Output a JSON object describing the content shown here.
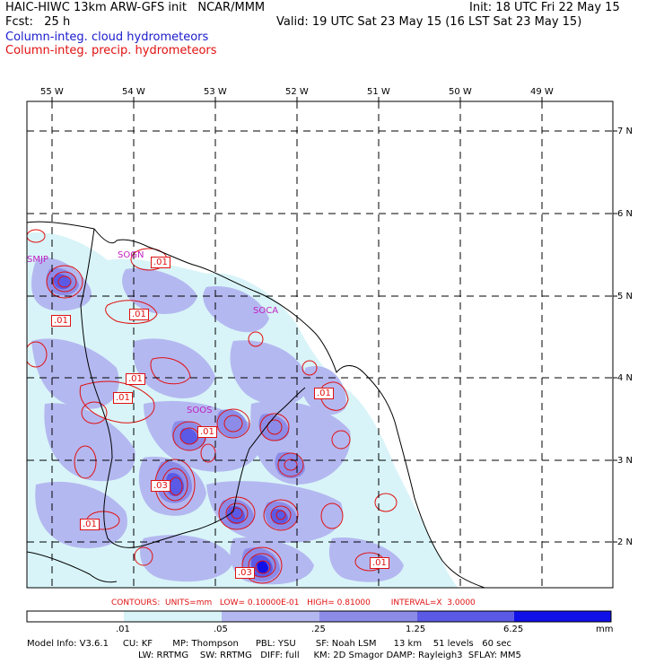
{
  "header": {
    "title": "HAIC-HIWC 13km ARW-GFS init   NCAR/MMM",
    "init": "Init: 18 UTC Fri 22 May 15",
    "fcst": "Fcst:   25 h",
    "valid": "Valid: 19 UTC Sat 23 May 15 (16 LST Sat 23 May 15)",
    "cloud_label": "Column-integ. cloud hydrometeors",
    "precip_label": "Column-integ. precip. hydrometeors"
  },
  "map": {
    "lon_labels": [
      "55 W",
      "54 W",
      "53 W",
      "52 W",
      "51 W",
      "50 W",
      "49 W"
    ],
    "lat_labels": [
      "7 N",
      "6 N",
      "5 N",
      "4 N",
      "3 N",
      "2 N"
    ],
    "stations": [
      "SMJP",
      "SOGN",
      "SOCA",
      "SOOS"
    ],
    "contour_labels": [
      ".01",
      ".01",
      ".01",
      ".01",
      ".01",
      ".01",
      ".03",
      ".01",
      ".01",
      ".03",
      ".01"
    ]
  },
  "contours_info": {
    "text": "CONTOURS:  UNITS=mm   LOW= 0.10000E-01   HIGH= 0.81000        INTERVAL=X  3.0000"
  },
  "colorbar": {
    "ticks": [
      ".01",
      ".05",
      ".25",
      "1.25",
      "6.25"
    ],
    "unit": "mm",
    "colors": [
      "#ffffff",
      "#d8f4f8",
      "#b4b8f0",
      "#8c8ce8",
      "#5a5ae6",
      "#2a2ae8",
      "#1010e8"
    ]
  },
  "model_info": {
    "line1": "Model Info: V3.6.1     CU: KF       MP: Thompson      PBL: YSU       SF: Noah LSM      13 km    51 levels   60 sec",
    "line2": "LW: RRTMG    SW: RRTMG   DIFF: full     KM: 2D Smagor DAMP: Rayleigh3  SFLAY: MM5"
  }
}
